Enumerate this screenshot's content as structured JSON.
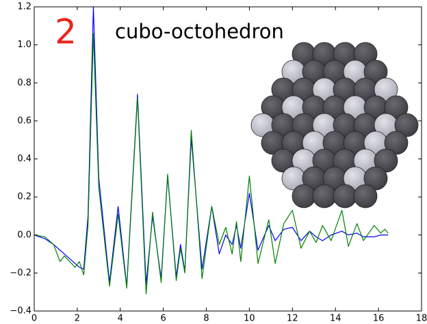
{
  "chart_data": {
    "type": "line",
    "annotations": [
      {
        "text": "2",
        "color": "#e8251a"
      },
      {
        "text": "cubo-octohedron"
      }
    ],
    "x": [
      0,
      0.5,
      0.9,
      1.2,
      1.4,
      1.9,
      2.1,
      2.3,
      2.5,
      2.75,
      3.0,
      3.5,
      3.9,
      4.3,
      4.8,
      5.2,
      5.5,
      5.9,
      6.2,
      6.6,
      6.8,
      7.0,
      7.3,
      7.8,
      8.25,
      8.6,
      8.9,
      9.2,
      9.4,
      9.6,
      10.0,
      10.4,
      10.9,
      11.2,
      11.6,
      12.0,
      12.4,
      12.8,
      13.1,
      13.4,
      13.8,
      14.3,
      14.6,
      15.0,
      15.3,
      15.8,
      16.1,
      16.3,
      16.45
    ],
    "series": [
      {
        "color": "#0000ff",
        "values": [
          0,
          -0.02,
          -0.05,
          -0.08,
          -0.1,
          -0.15,
          -0.17,
          -0.18,
          0.1,
          1.2,
          0.3,
          -0.25,
          0.15,
          -0.27,
          0.74,
          -0.26,
          0.1,
          -0.23,
          0.31,
          -0.22,
          -0.05,
          -0.19,
          0.51,
          -0.18,
          0.15,
          -0.1,
          0.0,
          -0.05,
          0.05,
          -0.07,
          0.22,
          -0.08,
          0.05,
          -0.03,
          0.03,
          0.04,
          -0.03,
          0.02,
          -0.01,
          -0.03,
          0.0,
          0.02,
          0.0,
          0.01,
          -0.01,
          -0.01,
          0.0,
          0.0,
          0.0
        ]
      },
      {
        "color": "#007f00",
        "values": [
          0,
          -0.01,
          -0.05,
          -0.14,
          -0.11,
          -0.17,
          -0.14,
          -0.21,
          0.05,
          1.06,
          0.25,
          -0.27,
          0.11,
          -0.28,
          0.72,
          -0.31,
          0.12,
          -0.25,
          0.32,
          -0.24,
          -0.07,
          -0.2,
          0.55,
          -0.23,
          0.15,
          -0.05,
          0.04,
          -0.1,
          0.07,
          -0.14,
          0.31,
          -0.15,
          0.08,
          -0.15,
          0.06,
          0.13,
          -0.07,
          0.02,
          -0.04,
          0.05,
          -0.03,
          0.13,
          -0.06,
          0.06,
          -0.03,
          0.05,
          0.01,
          0.03,
          0.01
        ]
      }
    ],
    "xlim": [
      0,
      18
    ],
    "xticks": [
      0,
      2,
      4,
      6,
      8,
      10,
      12,
      14,
      16,
      18
    ],
    "ylim": [
      -0.4,
      1.2
    ],
    "yticks": [
      {
        "value": -0.4,
        "label": "−0.4"
      },
      {
        "value": -0.2,
        "label": "−0.2"
      },
      {
        "value": 0,
        "label": "0.0"
      },
      0.2,
      0.4,
      0.6,
      0.8,
      {
        "value": 1,
        "label": "1.0"
      },
      1.2
    ]
  }
}
